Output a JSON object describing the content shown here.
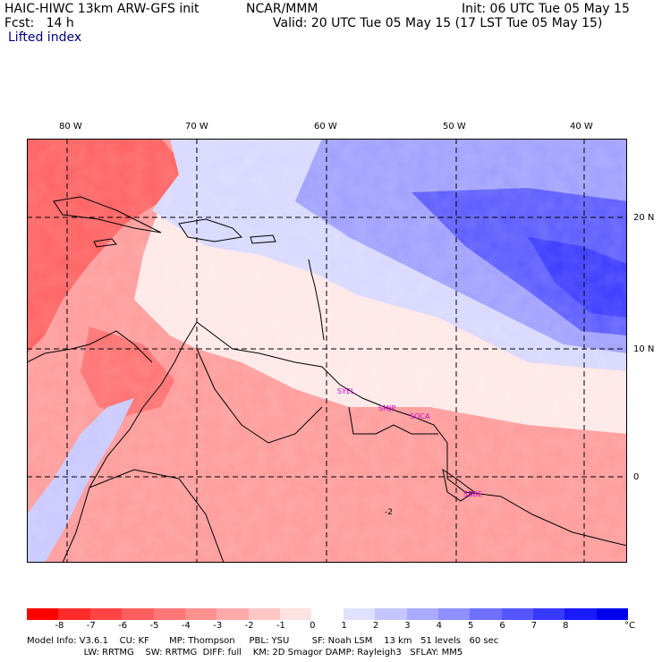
{
  "header": {
    "model": "HAIC-HIWC 13km ARW-GFS init",
    "org": "NCAR/MMM",
    "init": "Init: 06 UTC Tue 05 May 15",
    "fcst": "Fcst:   14 h",
    "valid": "Valid: 20 UTC Tue 05 May 15 (17 LST Tue 05 May 15)",
    "field": "Lifted index"
  },
  "map": {
    "lon_labels": [
      "80 W",
      "70 W",
      "60 W",
      "50 W",
      "40 W"
    ],
    "lon_values": [
      -80,
      -70,
      -60,
      -50,
      -40
    ],
    "lat_labels": [
      "20 N",
      "10 N",
      "0"
    ],
    "lat_values": [
      20,
      10,
      0
    ],
    "station_labels": [
      "SYEL",
      "SMJP",
      "SOCA",
      "SBBE"
    ],
    "contour_label": "-2",
    "colors": {
      "land_line": "#000000",
      "station": "#cc00cc",
      "grid": "#000000"
    }
  },
  "colorbar": {
    "labels": [
      "-8",
      "-7",
      "-6",
      "-5",
      "-4",
      "-3",
      "-2",
      "-1",
      "0",
      "1",
      "2",
      "3",
      "4",
      "5",
      "6",
      "7",
      "8"
    ],
    "unit": "°C",
    "colors": [
      "#ff0000",
      "#ff2a2a",
      "#ff4444",
      "#ff5e5e",
      "#ff7777",
      "#ff9090",
      "#ffaaaa",
      "#ffc6c6",
      "#ffe2e2",
      "#ffffff",
      "#e0e0ff",
      "#c6c6ff",
      "#aaaaff",
      "#8e8eff",
      "#7070ff",
      "#5555ff",
      "#3838ff",
      "#1a1aff",
      "#0000ee"
    ]
  },
  "info": {
    "line1": "Model Info: V3.6.1    CU: KF       MP: Thompson     PBL: YSU        SF: Noah LSM    13 km   51 levels   60 sec",
    "line2": "                    LW: RRTMG    SW: RRTMG  DIFF: full    KM: 2D Smagor DAMP: Rayleigh3   SFLAY: MM5"
  }
}
